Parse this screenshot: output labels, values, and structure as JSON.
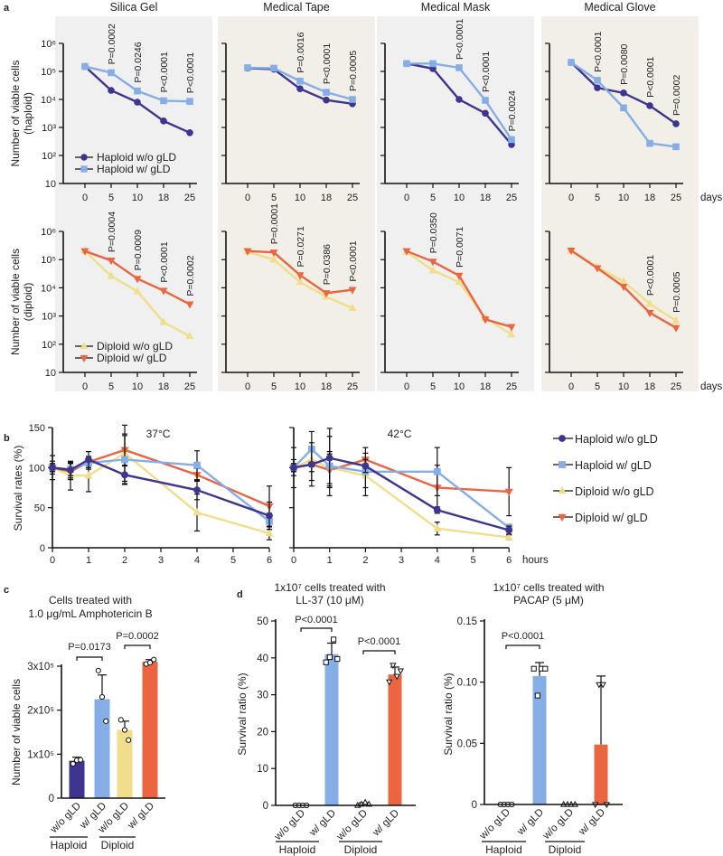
{
  "panel_labels": {
    "a": "a",
    "b": "b",
    "c": "c",
    "d": "d"
  },
  "colors": {
    "haploid_wo": "#3d3590",
    "haploid_w": "#86aee6",
    "diploid_wo": "#f0de8a",
    "diploid_w": "#ea6540",
    "panel_bg_gray": "#f0f0f0",
    "panel_bg_beige": "#f1efe7"
  },
  "chart_data": [
    {
      "type": "line",
      "title": "Silica Gel",
      "ylabel": [
        "Number of viable cells",
        "(haploid)"
      ],
      "yscale": "log",
      "ylim": [
        10,
        1000000
      ],
      "yticklabels": [
        "10⁶",
        "10⁵",
        "10⁴",
        "10³",
        "10²",
        "10"
      ],
      "categories": [
        "0",
        "5",
        "10",
        "18",
        "25"
      ],
      "xlabel": "",
      "series": [
        {
          "name": "Haploid w/o gLD",
          "key": "haploid_wo",
          "marker": "circle",
          "values": [
            150000,
            21000,
            8000,
            1700,
            650
          ]
        },
        {
          "name": "Haploid w/ gLD",
          "key": "haploid_w",
          "marker": "square",
          "values": [
            150000,
            90000,
            20000,
            9000,
            8500
          ]
        }
      ],
      "legend": "bottom-left",
      "pvalues": [
        {
          "day": "5",
          "text": "P=0.0002"
        },
        {
          "day": "10",
          "text": "P=0.0246"
        },
        {
          "day": "18",
          "text": "P<0.0001"
        },
        {
          "day": "25",
          "text": "P<0.0001"
        }
      ]
    },
    {
      "type": "line",
      "title": "Medical Tape",
      "yscale": "log",
      "ylim": [
        10,
        1000000
      ],
      "categories": [
        "0",
        "5",
        "10",
        "18",
        "25"
      ],
      "xlabel": "",
      "series": [
        {
          "name": "Haploid w/o gLD",
          "key": "haploid_wo",
          "marker": "circle",
          "values": [
            130000,
            120000,
            24000,
            9500,
            7000
          ]
        },
        {
          "name": "Haploid w/ gLD",
          "key": "haploid_w",
          "marker": "square",
          "values": [
            135000,
            130000,
            45000,
            18000,
            10000
          ]
        }
      ],
      "pvalues": [
        {
          "day": "10",
          "text": "P=0.0016"
        },
        {
          "day": "18",
          "text": "P<0.0001"
        },
        {
          "day": "25",
          "text": "P=0.0005"
        }
      ]
    },
    {
      "type": "line",
      "title": "Medical Mask",
      "yscale": "log",
      "ylim": [
        10,
        1000000
      ],
      "categories": [
        "0",
        "5",
        "10",
        "18",
        "25"
      ],
      "xlabel": "",
      "series": [
        {
          "name": "Haploid w/o gLD",
          "key": "haploid_wo",
          "marker": "circle",
          "values": [
            190000,
            126000,
            10000,
            3200,
            245
          ]
        },
        {
          "name": "Haploid w/ gLD",
          "key": "haploid_w",
          "marker": "square",
          "values": [
            190000,
            190000,
            135000,
            9300,
            370
          ]
        }
      ],
      "pvalues": [
        {
          "day": "10",
          "text": "P<0.0001"
        },
        {
          "day": "18",
          "text": "P<0.0001"
        },
        {
          "day": "25",
          "text": "P=0.0024"
        }
      ]
    },
    {
      "type": "line",
      "title": "Medical Glove",
      "yscale": "log",
      "ylim": [
        10,
        1000000
      ],
      "categories": [
        "0",
        "5",
        "10",
        "18",
        "25"
      ],
      "xlabel": "days",
      "series": [
        {
          "name": "Haploid w/o gLD",
          "key": "haploid_wo",
          "marker": "circle",
          "values": [
            210000,
            26000,
            17000,
            6000,
            1350
          ]
        },
        {
          "name": "Haploid w/ gLD",
          "key": "haploid_w",
          "marker": "square",
          "values": [
            210000,
            48000,
            5000,
            270,
            205
          ]
        }
      ],
      "pvalues": [
        {
          "day": "5",
          "text": "P<0.0001"
        },
        {
          "day": "10",
          "text": "P=0.0080"
        },
        {
          "day": "18",
          "text": "P<0.0001"
        },
        {
          "day": "25",
          "text": "P=0.0002"
        }
      ]
    },
    {
      "type": "line",
      "ylabel": [
        "Number of viable cells",
        "(diploid)"
      ],
      "yscale": "log",
      "ylim": [
        10,
        1000000
      ],
      "yticklabels": [
        "10⁶",
        "10⁵",
        "10⁴",
        "10³",
        "10²",
        "10"
      ],
      "categories": [
        "0",
        "5",
        "10",
        "18",
        "25"
      ],
      "xlabel": "",
      "series": [
        {
          "name": "Diploid w/o gLD",
          "key": "diploid_wo",
          "marker": "triangle-up",
          "values": [
            200000,
            26000,
            7500,
            600,
            195
          ]
        },
        {
          "name": "Diploid w/ gLD",
          "key": "diploid_w",
          "marker": "triangle-down",
          "values": [
            200000,
            93000,
            21000,
            7900,
            2600
          ]
        }
      ],
      "legend": "bottom-left",
      "pvalues": [
        {
          "day": "5",
          "text": "P=0.0004"
        },
        {
          "day": "10",
          "text": "P=0.0009"
        },
        {
          "day": "18",
          "text": "P<0.0001"
        },
        {
          "day": "25",
          "text": "P=0.0002"
        }
      ]
    },
    {
      "type": "line",
      "yscale": "log",
      "ylim": [
        10,
        1000000
      ],
      "categories": [
        "0",
        "5",
        "10",
        "18",
        "25"
      ],
      "xlabel": "",
      "series": [
        {
          "name": "Diploid w/o gLD",
          "key": "diploid_wo",
          "marker": "triangle-up",
          "values": [
            190000,
            100000,
            16000,
            4800,
            1900
          ]
        },
        {
          "name": "Diploid w/ gLD",
          "key": "diploid_w",
          "marker": "triangle-down",
          "values": [
            200000,
            180000,
            28000,
            6500,
            8500
          ]
        }
      ],
      "pvalues": [
        {
          "day": "5",
          "text": "P=0.0001"
        },
        {
          "day": "10",
          "text": "P=0.0271"
        },
        {
          "day": "18",
          "text": "P=0.0386"
        },
        {
          "day": "25",
          "text": "P<0.0001"
        }
      ]
    },
    {
      "type": "line",
      "yscale": "log",
      "ylim": [
        10,
        1000000
      ],
      "categories": [
        "0",
        "5",
        "10",
        "18",
        "25"
      ],
      "xlabel": "",
      "series": [
        {
          "name": "Diploid w/o gLD",
          "key": "diploid_wo",
          "marker": "triangle-up",
          "values": [
            190000,
            41000,
            16000,
            850,
            220
          ]
        },
        {
          "name": "Diploid w/ gLD",
          "key": "diploid_w",
          "marker": "triangle-down",
          "values": [
            200000,
            85000,
            27000,
            760,
            410
          ]
        }
      ],
      "pvalues": [
        {
          "day": "5",
          "text": "P=0.0350"
        },
        {
          "day": "10",
          "text": "P=0.0071"
        }
      ]
    },
    {
      "type": "line",
      "yscale": "log",
      "ylim": [
        10,
        1000000
      ],
      "categories": [
        "0",
        "5",
        "10",
        "18",
        "25"
      ],
      "xlabel": "days",
      "series": [
        {
          "name": "Diploid w/o gLD",
          "key": "diploid_wo",
          "marker": "triangle-up",
          "values": [
            210000,
            55000,
            17000,
            2700,
            680
          ]
        },
        {
          "name": "Diploid w/ gLD",
          "key": "diploid_w",
          "marker": "triangle-down",
          "values": [
            210000,
            50000,
            11000,
            1300,
            380
          ]
        }
      ],
      "pvalues": [
        {
          "day": "18",
          "text": "P<0.0001"
        },
        {
          "day": "25",
          "text": "P=0.0005"
        }
      ]
    },
    {
      "type": "line",
      "title": "37°C",
      "ylabel": "Survival rates (%)",
      "ylim": [
        0,
        150
      ],
      "yticklabels": [
        "0",
        "50",
        "100",
        "150"
      ],
      "x": [
        0,
        0.5,
        1,
        2,
        4,
        6
      ],
      "xticklabels": [
        "0",
        "1",
        "2",
        "3",
        "4",
        "5",
        "6"
      ],
      "xlabel": "",
      "series": [
        {
          "name": "Haploid w/o gLD",
          "key": "haploid_wo",
          "marker": "circle",
          "values": [
            100,
            97,
            110,
            91,
            72,
            40
          ],
          "errors": [
            5,
            10,
            10,
            12,
            12,
            17
          ]
        },
        {
          "name": "Haploid w/ gLD",
          "key": "haploid_w",
          "marker": "square",
          "values": [
            100,
            98,
            106,
            110,
            103,
            33
          ],
          "errors": [
            5,
            8,
            8,
            30,
            18,
            10
          ]
        },
        {
          "name": "Diploid w/o gLD",
          "key": "diploid_wo",
          "marker": "triangle-up",
          "values": [
            100,
            90,
            90,
            118,
            44,
            18
          ],
          "errors": [
            8,
            18,
            20,
            35,
            23,
            8
          ]
        },
        {
          "name": "Diploid w/ gLD",
          "key": "diploid_w",
          "marker": "triangle-down",
          "values": [
            100,
            95,
            107,
            122,
            91,
            52
          ],
          "errors": [
            15,
            10,
            5,
            20,
            8,
            25
          ]
        }
      ]
    },
    {
      "type": "line",
      "title": "42°C",
      "ylim": [
        0,
        150
      ],
      "x": [
        0,
        0.5,
        1,
        2,
        4,
        6
      ],
      "xticklabels": [
        "0",
        "1",
        "2",
        "3",
        "4",
        "5",
        "6"
      ],
      "xlabel": "hours",
      "series": [
        {
          "name": "Haploid w/o gLD",
          "key": "haploid_wo",
          "marker": "circle",
          "values": [
            100,
            104,
            112,
            102,
            47,
            22
          ],
          "errors": [
            5,
            27,
            37,
            8,
            4,
            5
          ]
        },
        {
          "name": "Haploid w/ gLD",
          "key": "haploid_w",
          "marker": "square",
          "values": [
            100,
            123,
            102,
            95,
            95,
            25
          ],
          "errors": [
            5,
            22,
            37,
            30,
            30,
            4
          ]
        },
        {
          "name": "Diploid w/o gLD",
          "key": "diploid_wo",
          "marker": "triangle-up",
          "values": [
            100,
            110,
            100,
            90,
            24,
            13
          ],
          "errors": [
            10,
            15,
            20,
            15,
            8,
            3
          ]
        },
        {
          "name": "Diploid w/ gLD",
          "key": "diploid_w",
          "marker": "triangle-down",
          "values": [
            100,
            104,
            97,
            110,
            75,
            70
          ],
          "errors": [
            25,
            20,
            20,
            8,
            28,
            30
          ]
        }
      ],
      "legend": "right"
    },
    {
      "type": "bar",
      "title": [
        "Cells treated with",
        "1.0 μg/mL Amphotericin B"
      ],
      "ylabel": "Number of viable cells",
      "ylim": [
        0,
        320000
      ],
      "yticks": [
        0,
        100000,
        200000,
        300000
      ],
      "yticklabels": [
        "0",
        "1x10⁵",
        "2x10⁵",
        "3x10⁵"
      ],
      "categories": [
        "w/o gLD",
        "w/ gLD",
        "w/o gLD",
        "w/ gLD"
      ],
      "groups": [
        "Haploid",
        "Diploid"
      ],
      "keys": [
        "haploid_wo",
        "haploid_w",
        "diploid_wo",
        "diploid_w"
      ],
      "markers": [
        "circle",
        "circle",
        "circle",
        "circle"
      ],
      "values": [
        85000,
        225000,
        155000,
        310000
      ],
      "errors": [
        8000,
        55000,
        20000,
        5000
      ],
      "points": [
        [
          78000,
          86000,
          87000
        ],
        [
          290000,
          230000,
          175000
        ],
        [
          178000,
          155000,
          132000
        ],
        [
          305000,
          308000,
          315000
        ]
      ],
      "comparisons": [
        {
          "from": 0,
          "to": 1,
          "text": "P=0.0173"
        },
        {
          "from": 2,
          "to": 3,
          "text": "P=0.0002"
        }
      ]
    },
    {
      "type": "bar",
      "title": [
        "1x10⁷ cells treated with",
        "LL-37 (10 μM)"
      ],
      "ylabel": "Survival ratio (%)",
      "ylim": [
        0,
        50
      ],
      "yticks": [
        0,
        10,
        20,
        30,
        40,
        50
      ],
      "yticklabels": [
        "0",
        "10",
        "20",
        "30",
        "40",
        "50"
      ],
      "categories": [
        "w/o gLD",
        "w/ gLD",
        "w/o gLD",
        "w/ gLD"
      ],
      "groups": [
        "Haploid",
        "Diploid"
      ],
      "keys": [
        "haploid_wo",
        "haploid_w",
        "diploid_wo",
        "diploid_w"
      ],
      "markers": [
        "circle",
        "square",
        "triangle-up",
        "triangle-down"
      ],
      "values": [
        0,
        41,
        0.3,
        35.5
      ],
      "errors": [
        0,
        3,
        0.4,
        2
      ],
      "points": [
        [
          0,
          0,
          0,
          0
        ],
        [
          38.8,
          40.2,
          45,
          39.7
        ],
        [
          0,
          0.3,
          0.8,
          0.3
        ],
        [
          33.5,
          38,
          35,
          36.5
        ]
      ],
      "comparisons": [
        {
          "from": 0,
          "to": 1,
          "text": "P<0.0001"
        },
        {
          "from": 2,
          "to": 3,
          "text": "P<0.0001"
        }
      ]
    },
    {
      "type": "bar",
      "title": [
        "1x10⁷ cells treated with",
        "PACAP (5 μM)"
      ],
      "ylabel": "Survival ratio (%)",
      "ylim": [
        0,
        0.15
      ],
      "yticks": [
        0,
        0.05,
        0.1,
        0.15
      ],
      "yticklabels": [
        "0",
        "0.05",
        "0.10",
        "0.15"
      ],
      "categories": [
        "w/o gLD",
        "w/ gLD",
        "w/o gLD",
        "w/ gLD"
      ],
      "groups": [
        "Haploid",
        "Diploid"
      ],
      "keys": [
        "haploid_wo",
        "haploid_w",
        "diploid_wo",
        "diploid_w"
      ],
      "markers": [
        "circle",
        "square",
        "triangle-up",
        "triangle-down"
      ],
      "values": [
        0,
        0.105,
        0,
        0.049
      ],
      "errors": [
        0,
        0.011,
        0,
        0.056
      ],
      "points": [
        [
          0,
          0,
          0,
          0
        ],
        [
          0.111,
          0.089,
          0.111,
          0.111
        ],
        [
          0,
          0,
          0,
          0
        ],
        [
          0,
          0.098,
          0.098,
          0
        ]
      ],
      "comparisons": [
        {
          "from": 0,
          "to": 1,
          "text": "P<0.0001"
        }
      ]
    }
  ]
}
